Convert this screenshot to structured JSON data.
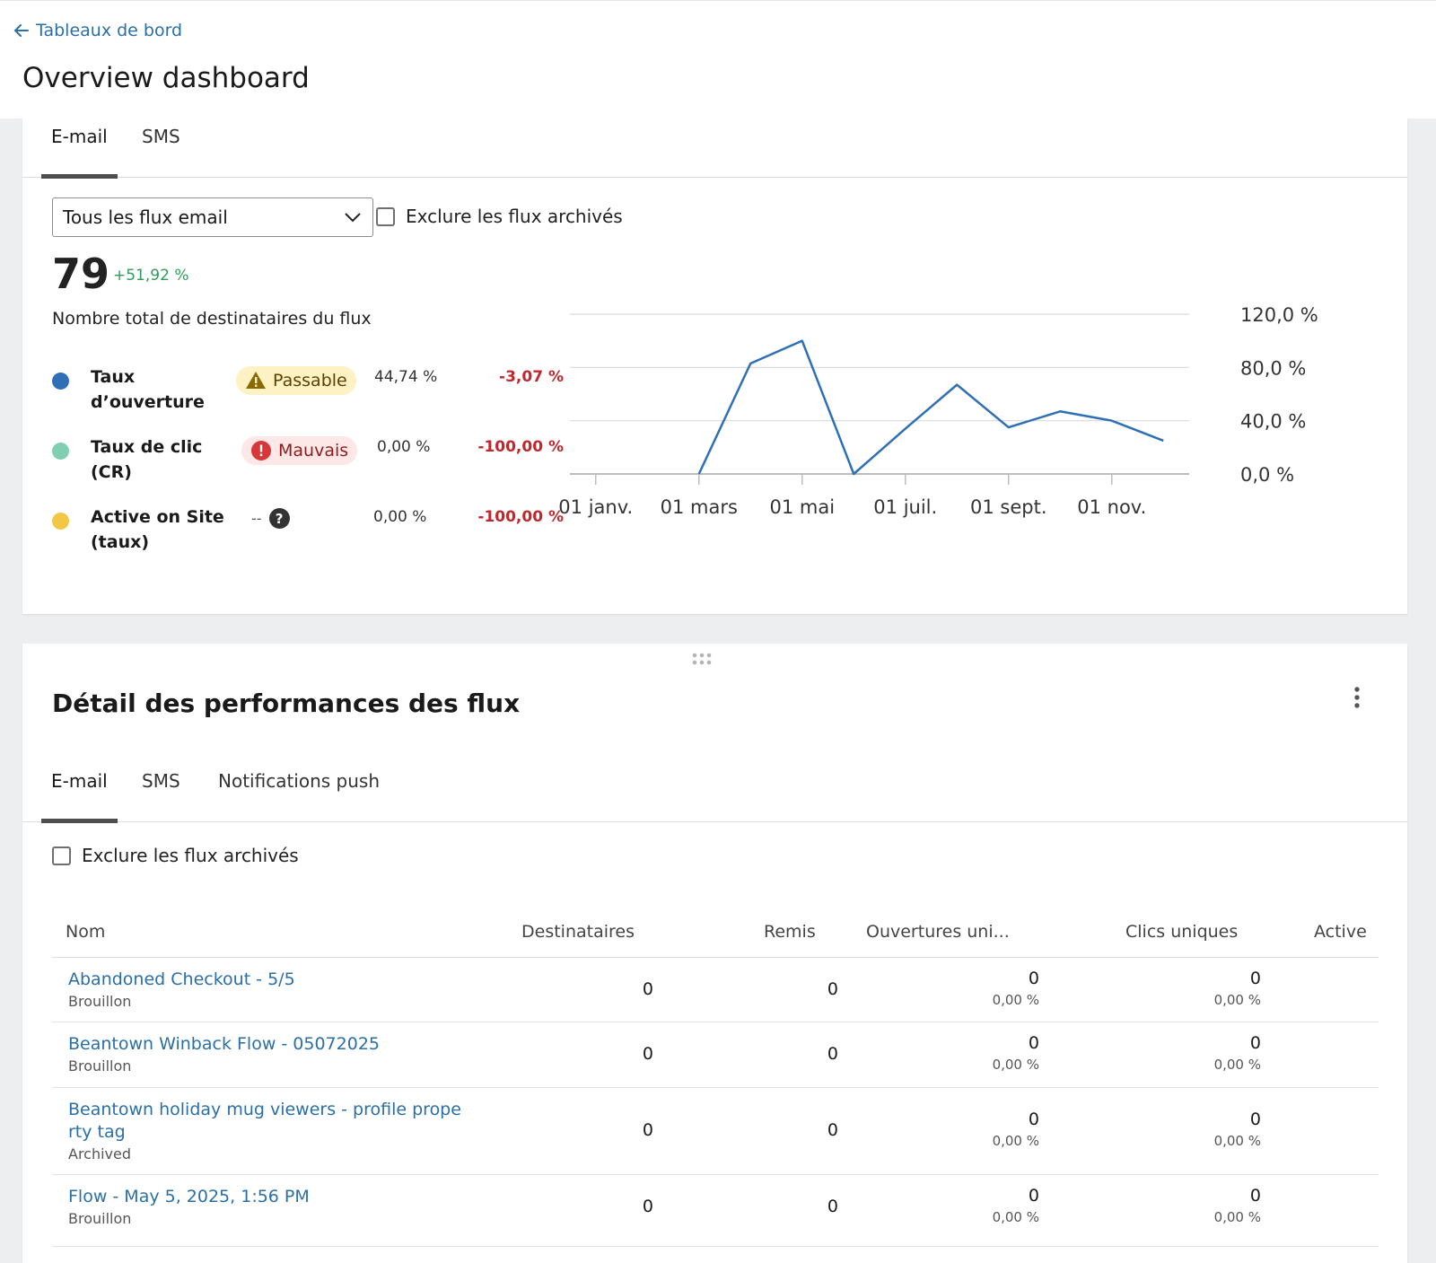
{
  "header": {
    "back_label": "Tableaux de bord",
    "title": "Overview dashboard"
  },
  "overview": {
    "tabs": [
      {
        "label": "E-mail",
        "active": true
      },
      {
        "label": "SMS",
        "active": false
      }
    ],
    "select_value": "Tous les flux email",
    "exclude_archived_label": "Exclure les flux archivés",
    "total": "79",
    "total_delta": "+51,92 %",
    "total_label": "Nombre total de destinataires du flux",
    "metrics": [
      {
        "name": "Taux d’ouverture",
        "color": "#2f6fb5",
        "badge": "Passable",
        "badge_type": "warn",
        "value": "44,74 %",
        "delta": "-3,07 %"
      },
      {
        "name": "Taux de clic (CR)",
        "color": "#7fcfb0",
        "badge": "Mauvais",
        "badge_type": "bad",
        "value": "0,00 %",
        "delta": "-100,00 %"
      },
      {
        "name": "Active on Site (taux)",
        "color": "#f2c744",
        "badge": "--",
        "badge_type": "none",
        "value": "0,00 %",
        "delta": "-100,00 %"
      }
    ]
  },
  "chart_data": {
    "type": "line",
    "x": [
      "01 janv.",
      "01 févr.",
      "01 mars",
      "01 avr.",
      "01 mai",
      "01 juin",
      "01 juil.",
      "01 août",
      "01 sept.",
      "01 oct.",
      "01 nov.",
      "01 déc."
    ],
    "x_tick_labels": [
      "01 janv.",
      "01 mars",
      "01 mai",
      "01 juil.",
      "01 sept.",
      "01 nov."
    ],
    "series": [
      {
        "color": "#2f6fb5",
        "values": [
          0,
          0,
          0,
          83,
          100,
          0,
          34,
          67,
          35,
          47,
          40,
          25
        ]
      }
    ],
    "y_tick_labels": [
      "0,0 %",
      "40,0 %",
      "80,0 %",
      "120,0 %"
    ],
    "ylim": [
      0,
      120
    ],
    "grid": true,
    "y_axis_side": "right"
  },
  "detail": {
    "title": "Détail des performances des flux",
    "tabs": [
      {
        "label": "E-mail",
        "active": true
      },
      {
        "label": "SMS",
        "active": false
      },
      {
        "label": "Notifications push",
        "active": false
      }
    ],
    "exclude_archived_label": "Exclure les flux archivés",
    "columns": [
      "Nom",
      "Destinataires",
      "Remis",
      "Ouvertures uni...",
      "Clics uniques",
      "Active"
    ],
    "rows": [
      {
        "name": "Abandoned Checkout - 5/5",
        "status": "Brouillon",
        "recipients": "0",
        "delivered": "0",
        "opens": "0",
        "opens_pct": "0,00 %",
        "clicks": "0",
        "clicks_pct": "0,00 %"
      },
      {
        "name": "Beantown Winback Flow - 05072025",
        "status": "Brouillon",
        "recipients": "0",
        "delivered": "0",
        "opens": "0",
        "opens_pct": "0,00 %",
        "clicks": "0",
        "clicks_pct": "0,00 %"
      },
      {
        "name": "Beantown holiday mug viewers - profile property tag",
        "status": "Archived",
        "recipients": "0",
        "delivered": "0",
        "opens": "0",
        "opens_pct": "0,00 %",
        "clicks": "0",
        "clicks_pct": "0,00 %"
      },
      {
        "name": "Flow - May 5, 2025, 1:56 PM",
        "status": "Brouillon",
        "recipients": "0",
        "delivered": "0",
        "opens": "0",
        "opens_pct": "0,00 %",
        "clicks": "0",
        "clicks_pct": "0,00 %"
      }
    ]
  }
}
